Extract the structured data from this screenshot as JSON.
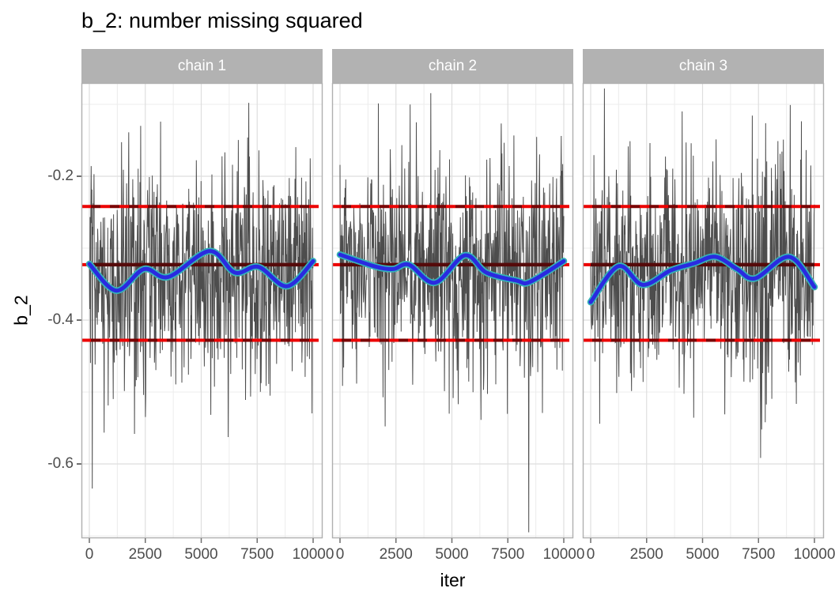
{
  "page": {
    "background": "#ffffff"
  },
  "chart_data": {
    "type": "line",
    "chart_kind": "mcmc-trace-plot-faceted",
    "title": "b_2: number missing squared",
    "xlabel": "iter",
    "ylabel": "b_2",
    "x_range": [
      0,
      10000
    ],
    "y_range_displayed": [
      -0.7,
      -0.07
    ],
    "grid": {
      "major": true,
      "minor": true,
      "background": "white"
    },
    "legend": "none",
    "x_ticks": [
      {
        "value": 0,
        "label": "0"
      },
      {
        "value": 2500,
        "label": "2500"
      },
      {
        "value": 5000,
        "label": "5000"
      },
      {
        "value": 7500,
        "label": "7500"
      },
      {
        "value": 10000,
        "label": "10000"
      }
    ],
    "y_ticks": [
      {
        "value": -0.2,
        "label": "-0.2"
      },
      {
        "value": -0.4,
        "label": "-0.4"
      },
      {
        "value": -0.6,
        "label": "-0.6"
      }
    ],
    "hlines": {
      "mean": -0.323,
      "upper": -0.242,
      "lower": -0.428,
      "mean_style": "solid dark red over red dashes at panel edges",
      "bound_style": "dashed, alternating bright red and dark red"
    },
    "facets": [
      {
        "label": "chain 1",
        "trace_seed": 101,
        "smooth": [
          [
            0,
            -0.322
          ],
          [
            1200,
            -0.359
          ],
          [
            2440,
            -0.329
          ],
          [
            3530,
            -0.34
          ],
          [
            5370,
            -0.304
          ],
          [
            6500,
            -0.334
          ],
          [
            7560,
            -0.326
          ],
          [
            8830,
            -0.353
          ],
          [
            10000,
            -0.318
          ]
        ]
      },
      {
        "label": "chain 2",
        "trace_seed": 202,
        "smooth": [
          [
            0,
            -0.309
          ],
          [
            1520,
            -0.325
          ],
          [
            2370,
            -0.329
          ],
          [
            3080,
            -0.323
          ],
          [
            4240,
            -0.348
          ],
          [
            5580,
            -0.31
          ],
          [
            6540,
            -0.334
          ],
          [
            7880,
            -0.345
          ],
          [
            8480,
            -0.347
          ],
          [
            10000,
            -0.318
          ]
        ]
      },
      {
        "label": "chain 3",
        "trace_seed": 303,
        "smooth": [
          [
            0,
            -0.375
          ],
          [
            1240,
            -0.325
          ],
          [
            2330,
            -0.351
          ],
          [
            3570,
            -0.331
          ],
          [
            4630,
            -0.321
          ],
          [
            5580,
            -0.312
          ],
          [
            6540,
            -0.329
          ],
          [
            7350,
            -0.342
          ],
          [
            8870,
            -0.312
          ],
          [
            10000,
            -0.354
          ]
        ]
      }
    ],
    "trace": {
      "points_per_chain_displayed": 620,
      "center": -0.332,
      "sd": 0.075,
      "spike_prob": 0.07,
      "spike_mult": 1.9,
      "clip": [
        -0.7,
        -0.078
      ]
    }
  },
  "colors": {
    "trace": "#4d4d4d",
    "smooth": "#2a2ae0",
    "smooth_halo": "#35b2b8",
    "hline_red": "#ec0000",
    "hline_dark_red": "#7a0000",
    "hline_mean_solid": "#550a0a",
    "strip_bg": "#b2b2b2",
    "strip_text": "#ffffff",
    "panel_bg": "#ffffff",
    "panel_border": "#afafaf",
    "grid_major": "#dedede",
    "grid_minor": "#ececec",
    "axis_text": "#4d4d4d",
    "tick_mark": "#6e6e6e",
    "title_text": "#000000"
  }
}
